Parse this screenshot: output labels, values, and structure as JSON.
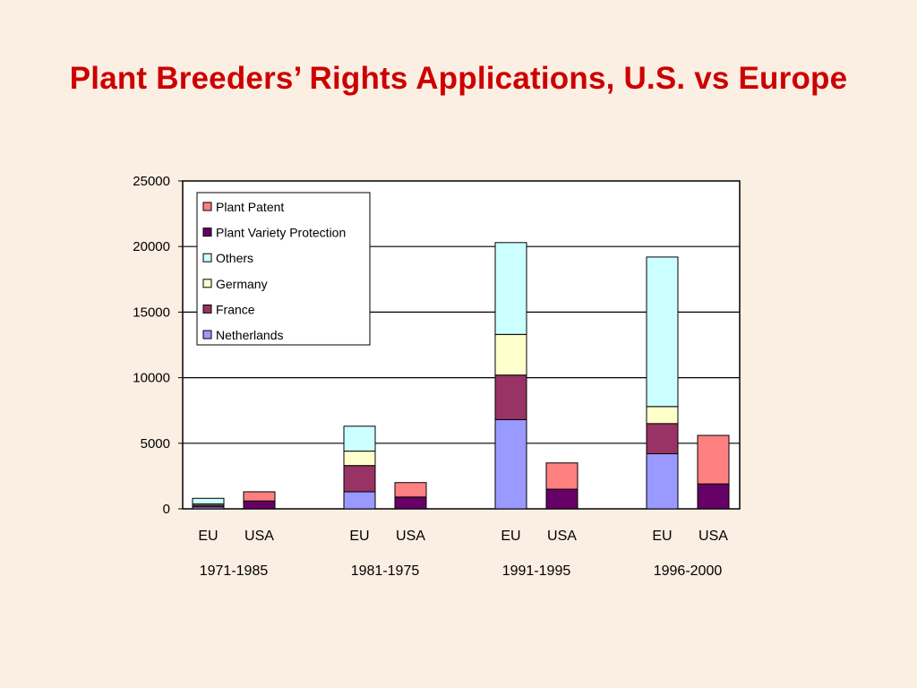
{
  "title": "Plant Breeders’ Rights Applications, U.S. vs Europe",
  "chart_data": {
    "type": "bar",
    "stacked": true,
    "title": "Plant Breeders’ Rights Applications, U.S. vs Europe",
    "ylim": [
      0,
      25000
    ],
    "yticks": [
      0,
      5000,
      10000,
      15000,
      20000,
      25000
    ],
    "grid": true,
    "legend_position": "top-left",
    "periods": [
      {
        "label": "1971-1985",
        "bars": [
          {
            "label": "EU",
            "values": {
              "Netherlands": 150,
              "France": 120,
              "Germany": 100,
              "Others": 430
            }
          },
          {
            "label": "USA",
            "values": {
              "Plant Variety Protection": 600,
              "Plant Patent": 700
            }
          }
        ]
      },
      {
        "label": "1981-1975",
        "bars": [
          {
            "label": "EU",
            "values": {
              "Netherlands": 1300,
              "France": 2000,
              "Germany": 1100,
              "Others": 1900
            }
          },
          {
            "label": "USA",
            "values": {
              "Plant Variety Protection": 900,
              "Plant Patent": 1100
            }
          }
        ]
      },
      {
        "label": "1991-1995",
        "bars": [
          {
            "label": "EU",
            "values": {
              "Netherlands": 6800,
              "France": 3400,
              "Germany": 3100,
              "Others": 7000
            }
          },
          {
            "label": "USA",
            "values": {
              "Plant Variety Protection": 1500,
              "Plant Patent": 2000
            }
          }
        ]
      },
      {
        "label": "1996-2000",
        "bars": [
          {
            "label": "EU",
            "values": {
              "Netherlands": 4200,
              "France": 2300,
              "Germany": 1300,
              "Others": 11400
            }
          },
          {
            "label": "USA",
            "values": {
              "Plant Variety Protection": 1900,
              "Plant Patent": 3700
            }
          }
        ]
      }
    ],
    "series": [
      {
        "name": "Netherlands",
        "color": "#9999ff"
      },
      {
        "name": "France",
        "color": "#993366"
      },
      {
        "name": "Germany",
        "color": "#ffffcc"
      },
      {
        "name": "Others",
        "color": "#ccffff"
      },
      {
        "name": "Plant Variety Protection",
        "color": "#660066"
      },
      {
        "name": "Plant Patent",
        "color": "#ff8080"
      }
    ],
    "legend_order": [
      "Plant Patent",
      "Plant Variety Protection",
      "Others",
      "Germany",
      "France",
      "Netherlands"
    ]
  }
}
